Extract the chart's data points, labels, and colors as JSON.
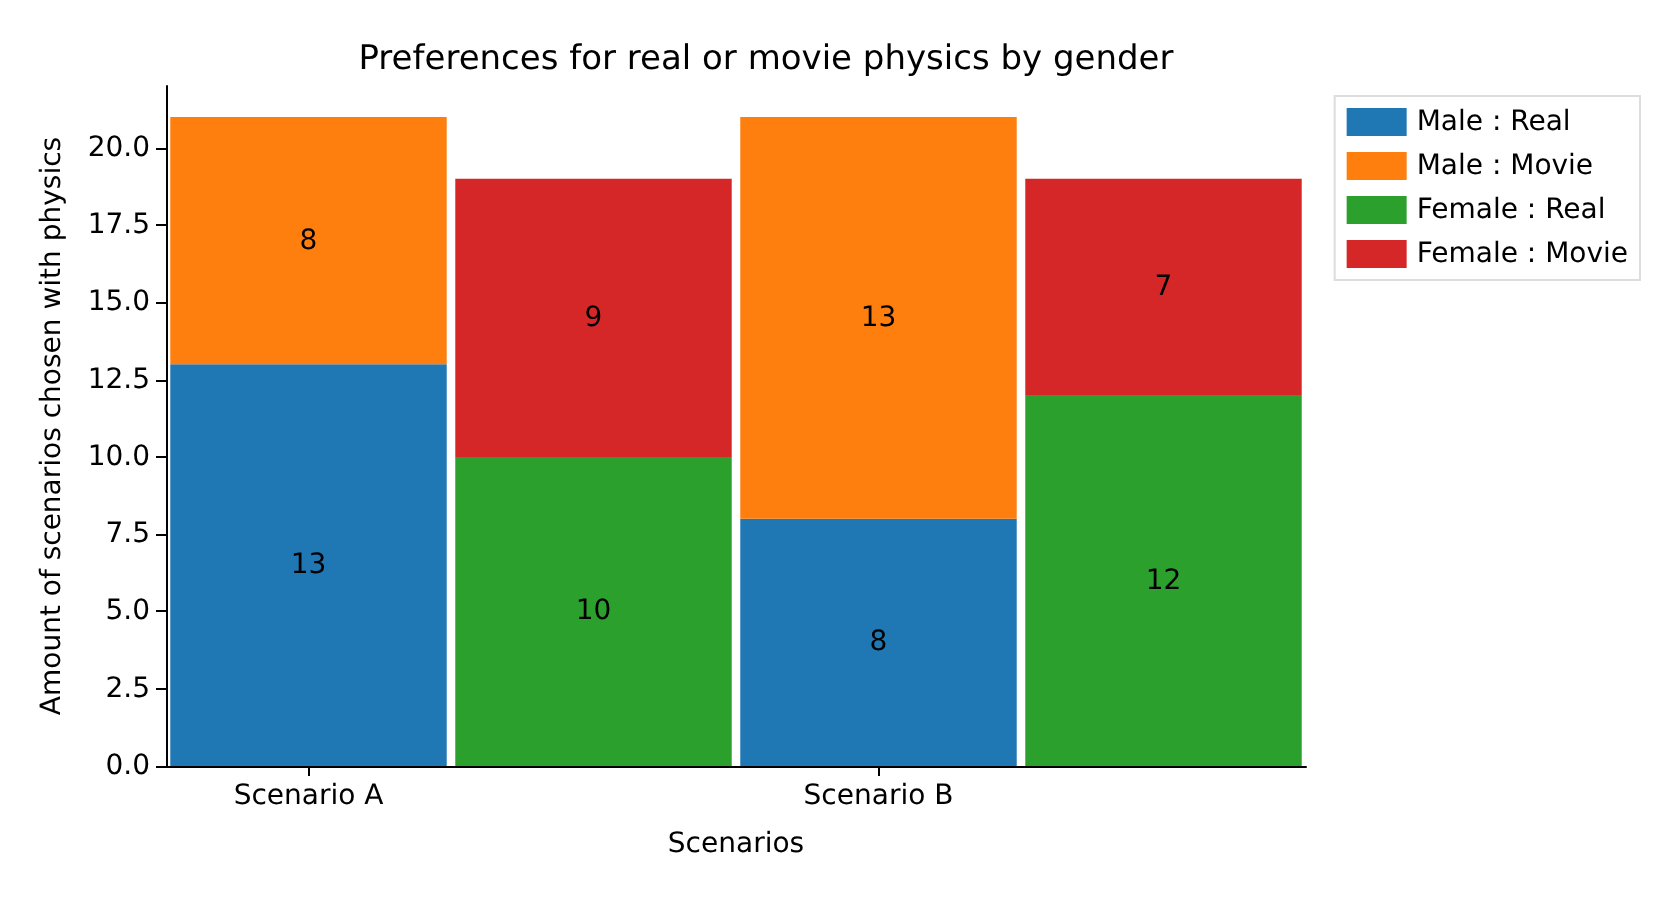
{
  "chart_data": {
    "type": "bar",
    "title": "Preferences for real or movie physics by gender",
    "xlabel": "Scenarios",
    "ylabel": "Amount of scenarios chosen with physics",
    "stacked": true,
    "categories": [
      "Scenario A",
      null,
      "Scenario B",
      null
    ],
    "series": [
      {
        "name": "Male : Real",
        "color": "#1f77b4",
        "values": [
          13,
          null,
          8,
          null
        ]
      },
      {
        "name": "Male : Movie",
        "color": "#ff7f0e",
        "values": [
          8,
          null,
          13,
          null
        ]
      },
      {
        "name": "Female : Real",
        "color": "#2ca02c",
        "values": [
          null,
          10,
          null,
          12
        ]
      },
      {
        "name": "Female : Movie",
        "color": "#d62728",
        "values": [
          null,
          9,
          null,
          7
        ]
      }
    ],
    "ylim": [
      0,
      22
    ],
    "yticks": [
      {
        "value": 0,
        "label": "0.0"
      },
      {
        "value": 2.5,
        "label": "2.5"
      },
      {
        "value": 5,
        "label": "5.0"
      },
      {
        "value": 7.5,
        "label": "7.5"
      },
      {
        "value": 10,
        "label": "10.0"
      },
      {
        "value": 12.5,
        "label": "12.5"
      },
      {
        "value": 15,
        "label": "15.0"
      },
      {
        "value": 17.5,
        "label": "17.5"
      },
      {
        "value": 20,
        "label": "20.0"
      }
    ],
    "data_labels": true,
    "grid": false,
    "legend": "right"
  }
}
